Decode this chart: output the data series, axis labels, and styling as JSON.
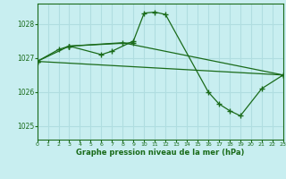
{
  "title": "Graphe pression niveau de la mer (hPa)",
  "bg_color": "#c8eef0",
  "grid_color": "#b0dde0",
  "line_color": "#1a6b1a",
  "xlim": [
    0,
    23
  ],
  "ylim": [
    1024.6,
    1028.6
  ],
  "yticks": [
    1025,
    1026,
    1027,
    1028
  ],
  "xticks": [
    0,
    1,
    2,
    3,
    4,
    5,
    6,
    7,
    8,
    9,
    10,
    11,
    12,
    13,
    14,
    15,
    16,
    17,
    18,
    19,
    20,
    21,
    22,
    23
  ],
  "series1_x": [
    0,
    3,
    6,
    7,
    9,
    10,
    11,
    12,
    16,
    17,
    18,
    19,
    21,
    23
  ],
  "series1_y": [
    1026.9,
    1027.35,
    1027.1,
    1027.2,
    1027.5,
    1028.32,
    1028.35,
    1028.28,
    1026.0,
    1025.65,
    1025.45,
    1025.3,
    1026.1,
    1026.5
  ],
  "series2_x": [
    0,
    2,
    3,
    9
  ],
  "series2_y": [
    1026.9,
    1027.25,
    1027.35,
    1027.45
  ],
  "series3_x": [
    0,
    23
  ],
  "series3_y": [
    1026.9,
    1026.5
  ],
  "series4_x": [
    3,
    8,
    23
  ],
  "series4_y": [
    1027.35,
    1027.45,
    1026.5
  ]
}
